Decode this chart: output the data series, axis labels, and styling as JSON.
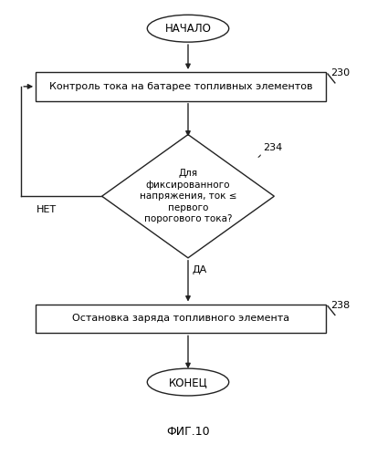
{
  "bg_color": "#ffffff",
  "text_color": "#000000",
  "shape_edge_color": "#222222",
  "shape_fill_color": "#ffffff",
  "start_text": "НАЧАЛО",
  "box1_text": "Контроль тока на батарее топливных элементов",
  "diamond_text": "Для\nфиксированного\nнапряжения, ток ≤\nпервого\nпорогового тока?",
  "box2_text": "Остановка заряда топливного элемента",
  "end_text": "КОНЕЦ",
  "label_234": "234",
  "label_230": "230",
  "label_238": "238",
  "yes_label": "ДА",
  "no_label": "НЕТ",
  "caption": "ФИГ.10",
  "fig_width": 4.13,
  "fig_height": 4.99,
  "dpi": 100
}
